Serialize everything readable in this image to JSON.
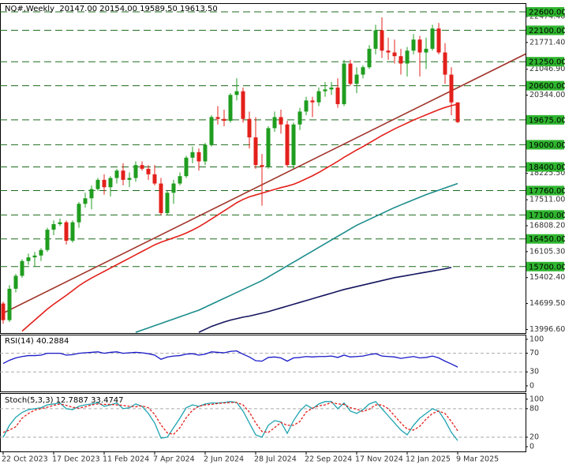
{
  "chart_data": [
    {
      "type": "candlestick",
      "title": "NQ#,Weekly  20147.00 20154.00 19589.50 19613.50",
      "categories": [
        "22 Oct 2023",
        null,
        null,
        null,
        null,
        null,
        null,
        null,
        "17 Dec 2023",
        null,
        null,
        null,
        null,
        null,
        null,
        null,
        "11 Feb 2024",
        null,
        null,
        null,
        null,
        null,
        null,
        null,
        "7 Apr 2024",
        null,
        null,
        null,
        null,
        null,
        null,
        null,
        "2 Jun 2024",
        null,
        null,
        null,
        null,
        null,
        null,
        null,
        "28 Jul 2024",
        null,
        null,
        null,
        null,
        null,
        null,
        null,
        "22 Sep 2024",
        null,
        null,
        null,
        null,
        null,
        null,
        null,
        "17 Nov 2024",
        null,
        null,
        null,
        null,
        null,
        null,
        null,
        "12 Jan 2025",
        null,
        null,
        null,
        null,
        null,
        null,
        null,
        "9 Mar 2025"
      ],
      "open": [
        14700,
        14250,
        15100,
        15450,
        15850,
        15950,
        16000,
        16150,
        16700,
        16850,
        16900,
        16400,
        16900,
        17400,
        17550,
        17800,
        18050,
        17850,
        18100,
        18300,
        18050,
        18100,
        18450,
        18350,
        18200,
        17950,
        17150,
        17700,
        17950,
        18150,
        18650,
        18800,
        18550,
        19000,
        19750,
        19700,
        19650,
        20350,
        20450,
        19700,
        19200,
        18450,
        18400,
        19450,
        19750,
        19550,
        18450,
        19550,
        19900,
        20200,
        20150,
        20450,
        20500,
        20550,
        20100,
        21200,
        20650,
        20900,
        21100,
        21600,
        22100,
        21550,
        21500,
        21400,
        21200,
        21550,
        21850,
        21500,
        21600,
        22150,
        21500,
        20900,
        20147
      ],
      "high": [
        14750,
        15200,
        15500,
        15900,
        16050,
        16100,
        16200,
        16750,
        16950,
        17000,
        16950,
        16950,
        17450,
        17700,
        17900,
        18100,
        18200,
        18150,
        18350,
        18500,
        18250,
        18550,
        18550,
        18450,
        18450,
        18100,
        17750,
        18050,
        18250,
        18700,
        18950,
        18900,
        19050,
        19800,
        20050,
        19950,
        20400,
        20800,
        20550,
        19900,
        19750,
        18750,
        19500,
        19900,
        19950,
        19650,
        19600,
        20000,
        20300,
        20300,
        20550,
        20700,
        20700,
        20800,
        21300,
        21300,
        21100,
        21150,
        21700,
        22250,
        22450,
        21900,
        21850,
        21600,
        21650,
        22000,
        21950,
        21900,
        22250,
        22300,
        21750,
        21100,
        20154
      ],
      "low": [
        14150,
        14200,
        15000,
        15400,
        15750,
        15700,
        15850,
        16100,
        16550,
        16800,
        16300,
        16350,
        16750,
        17300,
        17250,
        17750,
        17650,
        17600,
        17950,
        17900,
        17850,
        18000,
        18300,
        18050,
        17900,
        17100,
        17100,
        17400,
        17900,
        18100,
        18500,
        18300,
        18450,
        18950,
        19550,
        19500,
        19600,
        20200,
        19600,
        18900,
        18350,
        17350,
        18350,
        19350,
        19300,
        18400,
        18350,
        19400,
        19800,
        19750,
        20050,
        20300,
        20350,
        20000,
        20050,
        20600,
        20400,
        20800,
        21050,
        21450,
        21350,
        21300,
        21200,
        20900,
        20850,
        21450,
        20850,
        21050,
        21550,
        21450,
        20650,
        19800,
        19589.5
      ],
      "close": [
        14250,
        15100,
        15450,
        15850,
        15950,
        16000,
        16150,
        16700,
        16850,
        16900,
        16400,
        16900,
        17400,
        17550,
        17800,
        18050,
        17850,
        18100,
        18300,
        18050,
        18100,
        18450,
        18350,
        18200,
        17950,
        17150,
        17700,
        17950,
        18150,
        18650,
        18800,
        18550,
        19000,
        19750,
        19700,
        19650,
        20350,
        20450,
        19700,
        19200,
        18450,
        18400,
        19450,
        19750,
        19550,
        18450,
        19550,
        19900,
        20200,
        20150,
        20450,
        20500,
        20550,
        20100,
        21200,
        20650,
        20900,
        21100,
        21600,
        22100,
        21550,
        21500,
        21400,
        21200,
        21550,
        21850,
        21500,
        21600,
        22150,
        21500,
        20900,
        20147,
        19613.5
      ],
      "up_color": "#1f9d1f",
      "down_color": "#e3201b",
      "ylim": [
        13900,
        22836
      ],
      "yticks": [
        {
          "value": 13996.6,
          "label": "13996.60"
        },
        {
          "value": 14699.5,
          "label": "14699.50"
        },
        {
          "value": 15402.4,
          "label": "15402.40"
        },
        {
          "value": 16105.3,
          "label": "16105.30"
        },
        {
          "value": 16808.2,
          "label": "16808.20"
        },
        {
          "value": 17511,
          "label": "17511.00"
        },
        {
          "value": 18225.5,
          "label": "18225.50"
        },
        {
          "value": 20344,
          "label": "20344.00"
        },
        {
          "value": 21046.9,
          "label": "21046.90"
        },
        {
          "value": 21771.4,
          "label": "21771.40"
        },
        {
          "value": 22474.4,
          "label": "22474.40"
        }
      ],
      "levels": [
        {
          "value": 22600,
          "label": "22600.00"
        },
        {
          "value": 22100,
          "label": "22100.00"
        },
        {
          "value": 21250,
          "label": "21250.00"
        },
        {
          "value": 20600,
          "label": "20600.00"
        },
        {
          "value": 19675,
          "label": "19675.00"
        },
        {
          "value": 19000,
          "label": "19000.00"
        },
        {
          "value": 18400,
          "label": "18400.00"
        },
        {
          "value": 17760,
          "label": "17760.00"
        },
        {
          "value": 17100,
          "label": "17100.00"
        },
        {
          "value": 16450,
          "label": "16450.00"
        },
        {
          "value": 15700,
          "label": "15700.00"
        }
      ],
      "level_color": "#1d6b1d",
      "level_label_fill": "#2fb52f",
      "series": [
        {
          "color": "#e3201b",
          "values": [
            null,
            null,
            null,
            13950,
            14100,
            14250,
            14400,
            14550,
            14680,
            14800,
            14920,
            15050,
            15180,
            15290,
            15390,
            15480,
            15570,
            15660,
            15750,
            15840,
            15930,
            16020,
            16110,
            16200,
            16290,
            16360,
            16420,
            16480,
            16540,
            16610,
            16690,
            16780,
            16880,
            16990,
            17100,
            17210,
            17320,
            17430,
            17520,
            17590,
            17640,
            17690,
            17740,
            17790,
            17840,
            17880,
            17930,
            18000,
            18080,
            18160,
            18250,
            18350,
            18450,
            18550,
            18660,
            18760,
            18860,
            18950,
            19050,
            19150,
            19250,
            19340,
            19430,
            19510,
            19590,
            19670,
            19740,
            19810,
            19880,
            19950,
            20010,
            20060,
            20100
          ]
        },
        {
          "color": "#1b8c8c",
          "values": [
            null,
            null,
            null,
            null,
            null,
            null,
            null,
            null,
            null,
            null,
            null,
            null,
            null,
            null,
            null,
            null,
            null,
            null,
            null,
            null,
            null,
            13920,
            13980,
            14040,
            14100,
            14160,
            14220,
            14280,
            14340,
            14400,
            14460,
            14520,
            14600,
            14680,
            14760,
            14840,
            14920,
            15000,
            15080,
            15160,
            15240,
            15320,
            15420,
            15520,
            15620,
            15720,
            15820,
            15920,
            16020,
            16120,
            16220,
            16320,
            16420,
            16520,
            16620,
            16720,
            16820,
            16900,
            16980,
            17060,
            17140,
            17220,
            17300,
            17370,
            17440,
            17510,
            17580,
            17650,
            17710,
            17770,
            17830,
            17890,
            17950
          ]
        },
        {
          "color": "#14145e",
          "values": [
            null,
            null,
            null,
            null,
            null,
            null,
            null,
            null,
            null,
            null,
            null,
            null,
            null,
            null,
            null,
            null,
            null,
            null,
            null,
            null,
            null,
            null,
            null,
            null,
            null,
            null,
            null,
            null,
            null,
            null,
            null,
            13920,
            14000,
            14080,
            14140,
            14200,
            14250,
            14290,
            14330,
            14360,
            14400,
            14440,
            14480,
            14530,
            14580,
            14630,
            14680,
            14730,
            14780,
            14830,
            14880,
            14930,
            14980,
            15030,
            15080,
            15120,
            15160,
            15200,
            15240,
            15280,
            15320,
            15360,
            15400,
            15430,
            15460,
            15490,
            15520,
            15550,
            15580,
            15610,
            15640,
            15680,
            null
          ]
        }
      ],
      "trend_line": {
        "color": "#a0342a",
        "x": [
          0,
          83
        ],
        "values": [
          14440,
          21480
        ]
      }
    },
    {
      "type": "line",
      "title": "RSI(14) 40.2884",
      "ylim": [
        -12,
        110
      ],
      "yticks": [
        100,
        70,
        30,
        0
      ],
      "level_lines": [
        70,
        30
      ],
      "series": [
        {
          "color": "#1818c8",
          "values": [
            48,
            55,
            60,
            63,
            65,
            65,
            66,
            70,
            70,
            70,
            66,
            67,
            70,
            71,
            72,
            73,
            70,
            72,
            73,
            70,
            71,
            72,
            71,
            69,
            66,
            57,
            62,
            64,
            65,
            68,
            69,
            66,
            68,
            73,
            72,
            71,
            74,
            75,
            68,
            62,
            54,
            53,
            61,
            62,
            60,
            53,
            60,
            61,
            63,
            62,
            63,
            63,
            64,
            61,
            66,
            62,
            63,
            64,
            67,
            69,
            64,
            63,
            62,
            59,
            61,
            63,
            60,
            61,
            64,
            60,
            53,
            47,
            40.2884
          ]
        }
      ]
    },
    {
      "type": "line",
      "title": "Stoch(5,3,3) 12.7887 33.4747",
      "ylim": [
        -10,
        113
      ],
      "yticks": [
        100,
        80,
        20,
        0
      ],
      "level_lines": [
        80,
        20
      ],
      "series": [
        {
          "color": "#1fa3b0",
          "values": [
            20,
            45,
            62,
            72,
            78,
            80,
            82,
            88,
            90,
            92,
            80,
            78,
            85,
            88,
            90,
            93,
            85,
            88,
            92,
            80,
            82,
            90,
            85,
            70,
            50,
            18,
            20,
            40,
            60,
            82,
            88,
            85,
            90,
            92,
            92,
            93,
            95,
            93,
            75,
            50,
            25,
            20,
            45,
            55,
            52,
            28,
            55,
            75,
            88,
            80,
            90,
            95,
            95,
            80,
            92,
            75,
            70,
            78,
            90,
            95,
            80,
            65,
            50,
            35,
            25,
            45,
            60,
            70,
            80,
            75,
            55,
            30,
            12.7887
          ]
        },
        {
          "color": "#e3201b",
          "dash": true,
          "values": [
            30,
            35,
            42,
            60,
            70,
            77,
            80,
            83,
            87,
            90,
            87,
            83,
            81,
            84,
            88,
            90,
            89,
            89,
            88,
            87,
            85,
            84,
            86,
            82,
            68,
            46,
            29,
            26,
            40,
            61,
            77,
            85,
            88,
            89,
            91,
            92,
            93,
            93,
            88,
            73,
            50,
            32,
            30,
            40,
            51,
            45,
            45,
            53,
            73,
            81,
            86,
            88,
            93,
            90,
            89,
            82,
            79,
            74,
            79,
            88,
            88,
            80,
            65,
            50,
            37,
            35,
            43,
            58,
            70,
            75,
            70,
            53,
            33.4747
          ]
        }
      ]
    }
  ]
}
